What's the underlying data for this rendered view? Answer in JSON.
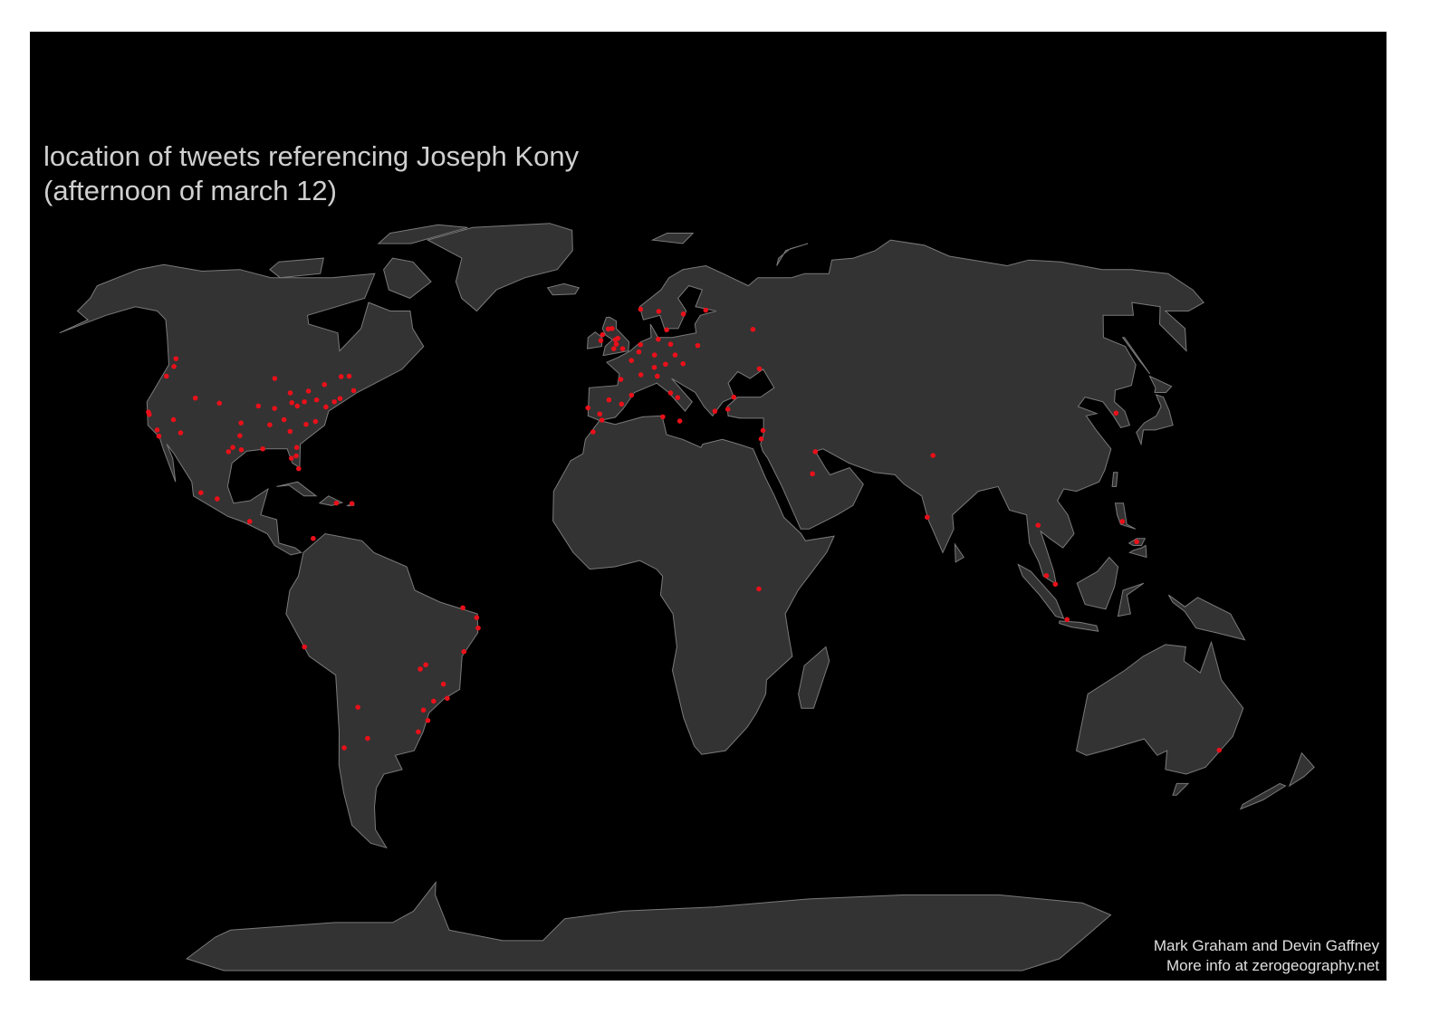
{
  "title_lines": [
    "location of tweets referencing Joseph Kony",
    "(afternoon of march 12)"
  ],
  "credits": [
    "Mark Graham and Devin Gaffney",
    "More info at zerogeography.net"
  ],
  "point_color": "#e8101a",
  "points": [
    {
      "lon": -122.3,
      "lat": 47.6
    },
    {
      "lon": -122.7,
      "lat": 45.5
    },
    {
      "lon": -122.4,
      "lat": 37.8
    },
    {
      "lon": -121.9,
      "lat": 37.3
    },
    {
      "lon": -118.2,
      "lat": 34.0
    },
    {
      "lon": -117.2,
      "lat": 32.7
    },
    {
      "lon": -112.0,
      "lat": 33.4
    },
    {
      "lon": -115.1,
      "lat": 36.2
    },
    {
      "lon": -111.9,
      "lat": 40.8
    },
    {
      "lon": -105.0,
      "lat": 39.7
    },
    {
      "lon": -96.8,
      "lat": 32.8
    },
    {
      "lon": -95.4,
      "lat": 29.8
    },
    {
      "lon": -97.7,
      "lat": 30.3
    },
    {
      "lon": -98.5,
      "lat": 29.4
    },
    {
      "lon": -97.5,
      "lat": 35.5
    },
    {
      "lon": -94.6,
      "lat": 39.1
    },
    {
      "lon": -93.3,
      "lat": 45.0
    },
    {
      "lon": -87.6,
      "lat": 41.9
    },
    {
      "lon": -83.0,
      "lat": 42.3
    },
    {
      "lon": -90.2,
      "lat": 38.6
    },
    {
      "lon": -86.8,
      "lat": 36.2
    },
    {
      "lon": -84.4,
      "lat": 33.7
    },
    {
      "lon": -90.0,
      "lat": 35.1
    },
    {
      "lon": -86.2,
      "lat": 39.8
    },
    {
      "lon": -83.0,
      "lat": 40.0
    },
    {
      "lon": -84.5,
      "lat": 39.1
    },
    {
      "lon": -80.0,
      "lat": 40.4
    },
    {
      "lon": -80.8,
      "lat": 35.2
    },
    {
      "lon": -78.6,
      "lat": 35.8
    },
    {
      "lon": -77.0,
      "lat": 38.9
    },
    {
      "lon": -75.2,
      "lat": 40.0
    },
    {
      "lon": -74.0,
      "lat": 40.7
    },
    {
      "lon": -71.1,
      "lat": 42.4
    },
    {
      "lon": -81.4,
      "lat": 28.5
    },
    {
      "lon": -80.2,
      "lat": 25.8
    },
    {
      "lon": -82.5,
      "lat": 28.0
    },
    {
      "lon": -81.7,
      "lat": 30.3
    },
    {
      "lon": -90.1,
      "lat": 30.0
    },
    {
      "lon": -79.4,
      "lat": 43.7
    },
    {
      "lon": -73.6,
      "lat": 45.5
    },
    {
      "lon": -75.7,
      "lat": 45.4
    },
    {
      "lon": -123.1,
      "lat": 49.3
    },
    {
      "lon": -99.1,
      "lat": 19.4
    },
    {
      "lon": -103.3,
      "lat": 20.7
    },
    {
      "lon": -90.5,
      "lat": 14.6
    },
    {
      "lon": -66.1,
      "lat": 18.4
    },
    {
      "lon": -69.9,
      "lat": 18.5
    },
    {
      "lon": -74.8,
      "lat": 11.0
    },
    {
      "lon": -77.0,
      "lat": -12.0
    },
    {
      "lon": -70.6,
      "lat": -33.4
    },
    {
      "lon": -64.2,
      "lat": -31.4
    },
    {
      "lon": -65.4,
      "lat": -24.8
    },
    {
      "lon": -38.5,
      "lat": -3.7
    },
    {
      "lon": -35.2,
      "lat": -5.8
    },
    {
      "lon": -34.9,
      "lat": -8.0
    },
    {
      "lon": -38.5,
      "lat": -13.0
    },
    {
      "lon": -47.9,
      "lat": -15.8
    },
    {
      "lon": -49.3,
      "lat": -16.7
    },
    {
      "lon": -43.9,
      "lat": -19.9
    },
    {
      "lon": -43.2,
      "lat": -22.9
    },
    {
      "lon": -46.6,
      "lat": -23.5
    },
    {
      "lon": -49.3,
      "lat": -25.4
    },
    {
      "lon": -51.2,
      "lat": -30.0
    },
    {
      "lon": -48.5,
      "lat": -27.6
    },
    {
      "lon": -0.1,
      "lat": 51.5
    },
    {
      "lon": -2.2,
      "lat": 53.5
    },
    {
      "lon": -1.9,
      "lat": 52.5
    },
    {
      "lon": -1.5,
      "lat": 53.8
    },
    {
      "lon": -4.3,
      "lat": 55.9
    },
    {
      "lon": -3.2,
      "lat": 56.0
    },
    {
      "lon": -6.3,
      "lat": 53.3
    },
    {
      "lon": -5.9,
      "lat": 54.6
    },
    {
      "lon": -2.6,
      "lat": 51.5
    },
    {
      "lon": 4.9,
      "lat": 52.4
    },
    {
      "lon": 4.4,
      "lat": 50.8
    },
    {
      "lon": 2.3,
      "lat": 48.9
    },
    {
      "lon": 4.8,
      "lat": 45.8
    },
    {
      "lon": -0.6,
      "lat": 44.8
    },
    {
      "lon": -3.7,
      "lat": 40.4
    },
    {
      "lon": 2.2,
      "lat": 41.4
    },
    {
      "lon": -0.4,
      "lat": 39.5
    },
    {
      "lon": -9.1,
      "lat": 38.7
    },
    {
      "lon": -6.0,
      "lat": 37.4
    },
    {
      "lon": -5.4,
      "lat": 36.1
    },
    {
      "lon": 13.4,
      "lat": 52.5
    },
    {
      "lon": 10.0,
      "lat": 53.6
    },
    {
      "lon": 11.6,
      "lat": 48.1
    },
    {
      "lon": 8.7,
      "lat": 50.1
    },
    {
      "lon": 8.5,
      "lat": 47.4
    },
    {
      "lon": 9.2,
      "lat": 45.5
    },
    {
      "lon": 12.5,
      "lat": 41.9
    },
    {
      "lon": 14.3,
      "lat": 40.9
    },
    {
      "lon": 12.6,
      "lat": 55.7
    },
    {
      "lon": 10.7,
      "lat": 59.9
    },
    {
      "lon": 18.0,
      "lat": 59.3
    },
    {
      "lon": 24.9,
      "lat": 60.2
    },
    {
      "lon": 5.3,
      "lat": 60.4
    },
    {
      "lon": 16.4,
      "lat": 48.2
    },
    {
      "lon": 21.0,
      "lat": 52.2
    },
    {
      "lon": 14.4,
      "lat": 50.1
    },
    {
      "lon": 37.6,
      "lat": 55.8
    },
    {
      "lon": 37.0,
      "lat": 47.1
    },
    {
      "lon": 29.0,
      "lat": 41.0
    },
    {
      "lon": 23.7,
      "lat": 38.0
    },
    {
      "lon": 27.1,
      "lat": 38.4
    },
    {
      "lon": 34.8,
      "lat": 32.1
    },
    {
      "lon": 35.5,
      "lat": 33.9
    },
    {
      "lon": 14.5,
      "lat": 35.9
    },
    {
      "lon": 10.2,
      "lat": 36.8
    },
    {
      "lon": -7.6,
      "lat": 33.6
    },
    {
      "lon": 48.0,
      "lat": 29.4
    },
    {
      "lon": 46.7,
      "lat": 24.7
    },
    {
      "lon": 77.2,
      "lat": 28.6
    },
    {
      "lon": 73.8,
      "lat": 15.5
    },
    {
      "lon": 32.6,
      "lat": 0.3
    },
    {
      "lon": 100.5,
      "lat": 13.8
    },
    {
      "lon": 121.0,
      "lat": 14.6
    },
    {
      "lon": 123.9,
      "lat": 10.3
    },
    {
      "lon": 101.7,
      "lat": 3.1
    },
    {
      "lon": 103.8,
      "lat": 1.3
    },
    {
      "lon": 106.8,
      "lat": -6.2
    },
    {
      "lon": 127.0,
      "lat": 37.6
    },
    {
      "lon": 151.2,
      "lat": -33.9
    }
  ]
}
